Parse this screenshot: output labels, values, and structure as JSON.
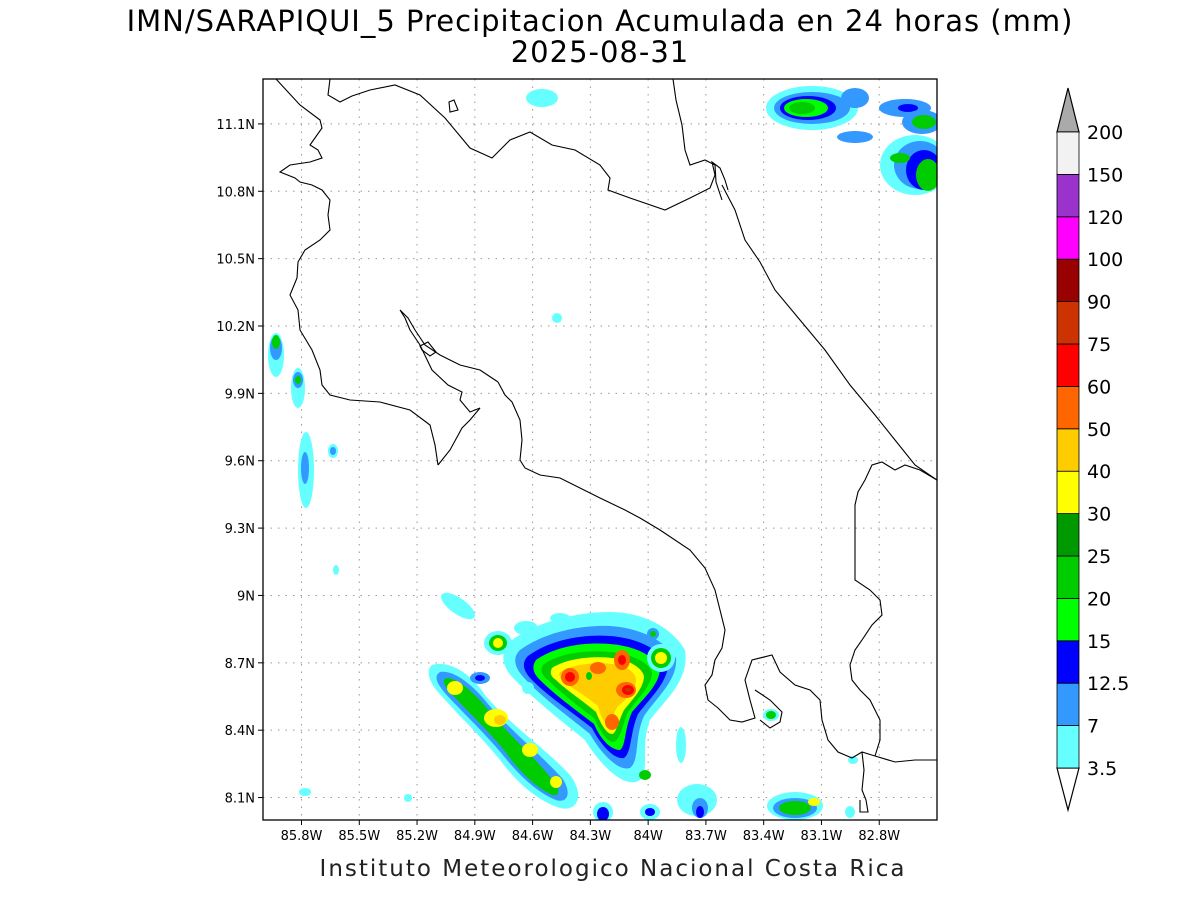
{
  "header": {
    "title": "IMN/SARAPIQUI_5 Precipitacion Acumulada en 24 horas (mm)",
    "date": "2025-08-31"
  },
  "footer": {
    "credit": "Instituto Meteorologico Nacional Costa Rica"
  },
  "map": {
    "lon_range": [
      -86.0,
      -82.5
    ],
    "lat_range": [
      8.0,
      11.3
    ],
    "lon_ticks": [
      -85.8,
      -85.5,
      -85.2,
      -84.9,
      -84.6,
      -84.3,
      -84.0,
      -83.7,
      -83.4,
      -83.1,
      -82.8
    ],
    "lon_tick_labels": [
      "85.8W",
      "85.5W",
      "85.2W",
      "84.9W",
      "84.6W",
      "84.3W",
      "84W",
      "83.7W",
      "83.4W",
      "83.1W",
      "82.8W"
    ],
    "lat_ticks": [
      8.1,
      8.4,
      8.7,
      9.0,
      9.3,
      9.6,
      9.9,
      10.2,
      10.5,
      10.8,
      11.1
    ],
    "lat_tick_labels": [
      "8.1N",
      "8.4N",
      "8.7N",
      "9N",
      "9.3N",
      "9.6N",
      "9.9N",
      "10.2N",
      "10.5N",
      "10.8N",
      "11.1N"
    ],
    "grid": true
  },
  "colorbar": {
    "levels": [
      "3.5",
      "7",
      "12.5",
      "15",
      "20",
      "25",
      "30",
      "40",
      "50",
      "60",
      "75",
      "90",
      "100",
      "120",
      "150",
      "200"
    ],
    "colors": [
      "#66ffff",
      "#3399ff",
      "#0000ff",
      "#00ff00",
      "#00cc00",
      "#009900",
      "#ffff00",
      "#ffcc00",
      "#ff6600",
      "#ff0000",
      "#cc3300",
      "#990000",
      "#ff00ff",
      "#9933cc",
      "#f2f2f2"
    ],
    "over_color": "#aaaaaa",
    "under_color": "#ffffff"
  }
}
